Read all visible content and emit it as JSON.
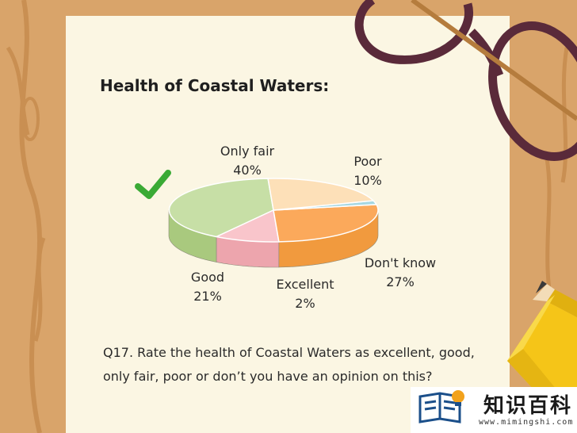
{
  "title": "Health of Coastal Waters:",
  "question": "Q17. Rate the health of Coastal Waters as excellent, good, only fair, poor or don’t you have an opinion on this?",
  "chart_data": {
    "type": "pie",
    "slices": [
      {
        "label": "Only fair",
        "value": 40,
        "value_label": "40%",
        "top_color": "#c7dfa6",
        "side_color": "#a9c97e",
        "marked": true
      },
      {
        "label": "Poor",
        "value": 10,
        "value_label": "10%",
        "top_color": "#f9c5cb",
        "side_color": "#eda5ad",
        "marked": false
      },
      {
        "label": "Don't know",
        "value": 27,
        "value_label": "27%",
        "top_color": "#fba95b",
        "side_color": "#f19a3e",
        "marked": false
      },
      {
        "label": "Excellent",
        "value": 2,
        "value_label": "2%",
        "top_color": "#a6d8e3",
        "side_color": "#8cc9d8",
        "marked": false
      },
      {
        "label": "Good",
        "value": 21,
        "value_label": "21%",
        "top_color": "#fde0b8",
        "side_color": "#f1d3ad",
        "marked": false
      }
    ]
  },
  "colors": {
    "paper": "#fbf6e3",
    "wood": "#d9a46a",
    "wood_grain": "#c98f52",
    "checkmark": "#3aaa35",
    "pencil_body": "#f5c518",
    "glasses_frame": "#5a2a3a"
  },
  "icons": [
    "checkmark-icon",
    "glasses-icon",
    "pencil-icon",
    "book-icon",
    "lightbulb-icon"
  ],
  "brand": {
    "name": "知识百科",
    "url": "www.mimingshi.com"
  }
}
